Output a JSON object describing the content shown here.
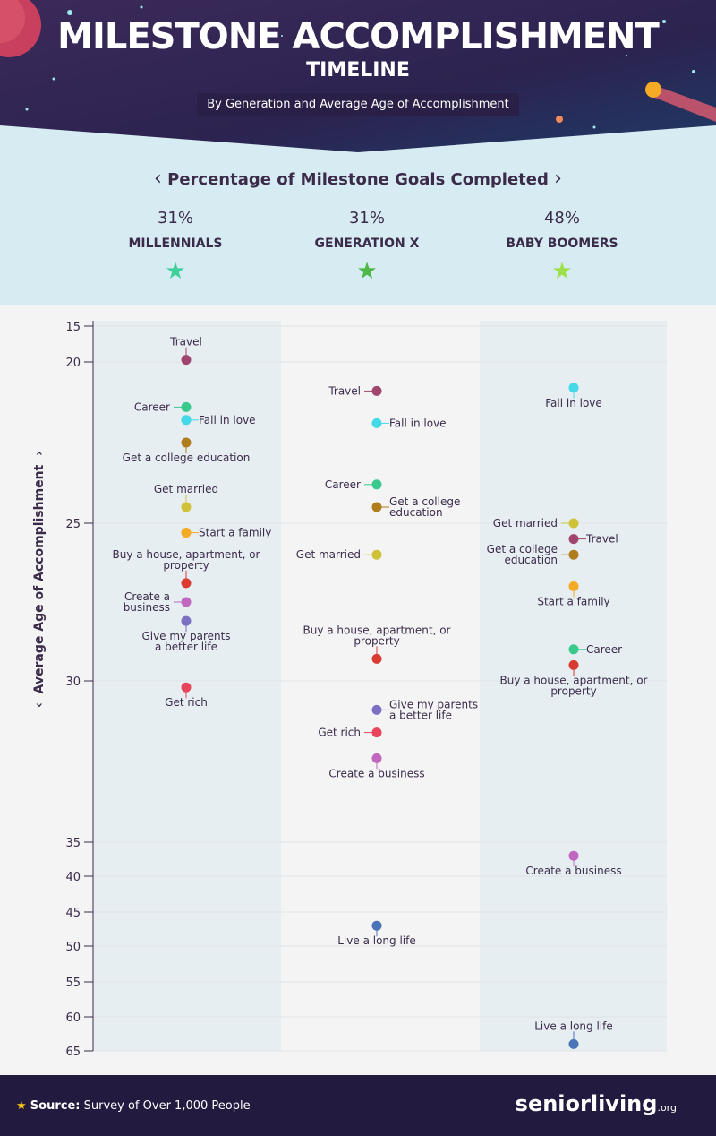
{
  "title": "MILESTONE ACCOMPLISHMENT",
  "title_line2": "TIMELINE",
  "subtitle": "By Generation and Average Age of Accomplishment",
  "summary_title": "Percentage of Milestone Goals Completed",
  "generations": [
    {
      "percent": "31%",
      "name": "MILLENNIALS",
      "star_color": "#3fd19a"
    },
    {
      "percent": "31%",
      "name": "GENERATION X",
      "star_color": "#4cb848"
    },
    {
      "percent": "48%",
      "name": "BABY BOOMERS",
      "star_color": "#9ee04a"
    }
  ],
  "footer": {
    "source_label": "Source:",
    "source_text": "Survey of Over 1,000 People",
    "brand": "seniorliving",
    "brand_suffix": ".org"
  },
  "chart_data": {
    "type": "scatter",
    "ylabel": "Average Age of Accomplishment",
    "yticks": [
      15,
      20,
      25,
      30,
      35,
      40,
      45,
      50,
      55,
      60,
      65
    ],
    "categories": [
      "MILLENNIALS",
      "GENERATION X",
      "BABY BOOMERS"
    ],
    "colors": {
      "Travel": "#a0456e",
      "Career": "#3ac98c",
      "Fall in love": "#44d9e6",
      "Get a college education": "#b07d1c",
      "Get married": "#cfc238",
      "Start a family": "#f5ab25",
      "Buy a house, apartment, or property": "#d93a32",
      "Create a business": "#c068c0",
      "Give my parents a better life": "#7d6fc2",
      "Get rich": "#e8455a",
      "Live a long life": "#4a73b8"
    },
    "series": [
      {
        "name": "MILLENNIALS",
        "points": [
          {
            "label": "Travel",
            "age": 19.7,
            "pos": "top"
          },
          {
            "label": "Career",
            "age": 21.4,
            "pos": "left"
          },
          {
            "label": "Fall in love",
            "age": 21.8,
            "pos": "right"
          },
          {
            "label": "Get a college education",
            "age": 22.5,
            "pos": "bottom",
            "lines": [
              "Get a college education"
            ]
          },
          {
            "label": "Get married",
            "age": 24.5,
            "pos": "top"
          },
          {
            "label": "Start a family",
            "age": 25.3,
            "pos": "right"
          },
          {
            "label": "Buy a house, apartment, or property",
            "age": 26.9,
            "pos": "top",
            "lines": [
              "Buy a house, apartment, or",
              "property"
            ]
          },
          {
            "label": "Create a business",
            "age": 27.5,
            "pos": "left",
            "lines": [
              "Create a",
              "business"
            ]
          },
          {
            "label": "Give my parents a better life",
            "age": 28.1,
            "pos": "bottom",
            "lines": [
              "Give my parents",
              "a better life"
            ]
          },
          {
            "label": "Get rich",
            "age": 30.2,
            "pos": "bottom"
          }
        ]
      },
      {
        "name": "GENERATION X",
        "points": [
          {
            "label": "Travel",
            "age": 20.9,
            "pos": "left"
          },
          {
            "label": "Fall in love",
            "age": 21.9,
            "pos": "right"
          },
          {
            "label": "Career",
            "age": 23.8,
            "pos": "left"
          },
          {
            "label": "Get a college education",
            "age": 24.5,
            "pos": "right",
            "lines": [
              "Get a college",
              "education"
            ]
          },
          {
            "label": "Get married",
            "age": 26.0,
            "pos": "left"
          },
          {
            "label": "Buy a house, apartment, or property",
            "age": 29.3,
            "pos": "top",
            "lines": [
              "Buy a house, apartment, or",
              "property"
            ]
          },
          {
            "label": "Give my parents a better life",
            "age": 30.9,
            "pos": "right",
            "lines": [
              "Give my parents",
              "a better life"
            ]
          },
          {
            "label": "Get rich",
            "age": 31.6,
            "pos": "left"
          },
          {
            "label": "Create a business",
            "age": 32.4,
            "pos": "bottom"
          },
          {
            "label": "Live a long life",
            "age": 47.0,
            "pos": "bottom"
          }
        ]
      },
      {
        "name": "BABY BOOMERS",
        "points": [
          {
            "label": "Fall in love",
            "age": 20.8,
            "pos": "bottom"
          },
          {
            "label": "Get married",
            "age": 25.0,
            "pos": "left"
          },
          {
            "label": "Travel",
            "age": 25.5,
            "pos": "right"
          },
          {
            "label": "Get a college education",
            "age": 26.0,
            "pos": "left",
            "lines": [
              "Get a college",
              "education"
            ]
          },
          {
            "label": "Start a family",
            "age": 27.0,
            "pos": "bottom"
          },
          {
            "label": "Career",
            "age": 29.0,
            "pos": "right"
          },
          {
            "label": "Buy a house, apartment, or property",
            "age": 29.5,
            "pos": "bottom",
            "lines": [
              "Buy a house, apartment, or",
              "property"
            ]
          },
          {
            "label": "Create a business",
            "age": 37.0,
            "pos": "bottom"
          },
          {
            "label": "Live a long life",
            "age": 64.0,
            "pos": "top"
          }
        ]
      }
    ]
  }
}
